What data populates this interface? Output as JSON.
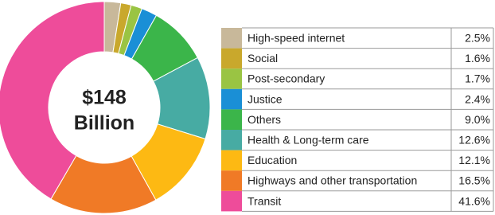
{
  "chart_data": {
    "type": "donut",
    "center_label": [
      "$148",
      "Billion"
    ],
    "categories": [
      "High-speed internet",
      "Social",
      "Post-secondary",
      "Justice",
      "Others",
      "Health & Long-term care",
      "Education",
      "Highways and other transportation",
      "Transit"
    ],
    "values": [
      2.5,
      1.6,
      1.7,
      2.4,
      9.0,
      12.6,
      12.1,
      16.5,
      41.6
    ],
    "value_labels": [
      "2.5%",
      "1.6%",
      "1.7%",
      "2.4%",
      "9.0%",
      "12.6%",
      "12.1%",
      "16.5%",
      "41.6%"
    ],
    "colors": [
      "#c8b89a",
      "#c9a82c",
      "#9ac443",
      "#1a8fd6",
      "#3bb54a",
      "#47aba3",
      "#fdb913",
      "#f07a26",
      "#ee4c9a"
    ]
  }
}
